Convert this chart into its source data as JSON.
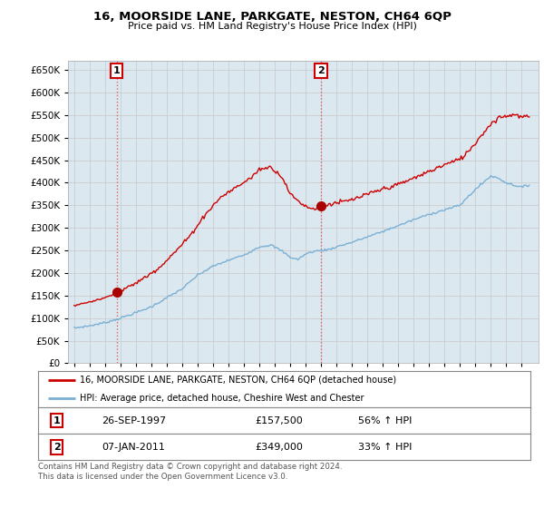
{
  "title": "16, MOORSIDE LANE, PARKGATE, NESTON, CH64 6QP",
  "subtitle": "Price paid vs. HM Land Registry's House Price Index (HPI)",
  "sale1_t": 1997.75,
  "sale1_price": 157500,
  "sale2_t": 2011.0,
  "sale2_price": 349000,
  "hpi_line_color": "#7ab0d4",
  "price_line_color": "#cc0000",
  "vline_color": "#e06060",
  "dot_color": "#aa0000",
  "grid_color": "#c8c8c8",
  "chart_bg_color": "#dce8f0",
  "background_color": "#ffffff",
  "legend_label1": "16, MOORSIDE LANE, PARKGATE, NESTON, CH64 6QP (detached house)",
  "legend_label2": "HPI: Average price, detached house, Cheshire West and Chester",
  "table_row1": [
    "1",
    "26-SEP-1997",
    "£157,500",
    "56% ↑ HPI"
  ],
  "table_row2": [
    "2",
    "07-JAN-2011",
    "£349,000",
    "33% ↑ HPI"
  ],
  "footnote": "Contains HM Land Registry data © Crown copyright and database right 2024.\nThis data is licensed under the Open Government Licence v3.0.",
  "ylim": [
    0,
    670000
  ],
  "yticks": [
    0,
    50000,
    100000,
    150000,
    200000,
    250000,
    300000,
    350000,
    400000,
    450000,
    500000,
    550000,
    600000,
    650000
  ],
  "hpi_anchors_t": [
    1995.0,
    1996.0,
    1997.0,
    1998.0,
    1999.0,
    2000.0,
    2001.0,
    2002.0,
    2003.0,
    2004.0,
    2005.0,
    2006.0,
    2007.0,
    2007.75,
    2008.5,
    2009.0,
    2009.5,
    2010.0,
    2010.5,
    2011.0,
    2011.5,
    2012.0,
    2013.0,
    2014.0,
    2015.0,
    2016.0,
    2017.0,
    2018.0,
    2019.0,
    2020.0,
    2020.5,
    2021.0,
    2021.5,
    2022.0,
    2022.5,
    2023.0,
    2023.5,
    2024.0,
    2024.5
  ],
  "hpi_anchors_v": [
    78000,
    83000,
    90000,
    100000,
    112000,
    125000,
    145000,
    165000,
    195000,
    215000,
    228000,
    240000,
    258000,
    262000,
    248000,
    235000,
    230000,
    242000,
    248000,
    250000,
    252000,
    258000,
    268000,
    280000,
    292000,
    305000,
    318000,
    330000,
    340000,
    350000,
    368000,
    385000,
    400000,
    415000,
    410000,
    400000,
    395000,
    390000,
    395000
  ],
  "price_anchors_before_t": [
    1995.0,
    1996.0,
    1997.0,
    1997.75
  ],
  "price_anchors_before_v": [
    128000,
    136000,
    145000,
    157500
  ],
  "price_anchors_between_t": [
    1997.75,
    1998.5,
    1999.5,
    2000.5,
    2001.5,
    2002.5,
    2003.5,
    2004.5,
    2005.5,
    2006.5,
    2007.0,
    2007.75,
    2008.5,
    2009.0,
    2009.5,
    2010.0,
    2010.5,
    2011.0
  ],
  "price_anchors_between_v": [
    157500,
    168000,
    188000,
    212000,
    245000,
    282000,
    330000,
    368000,
    390000,
    412000,
    430000,
    435000,
    412000,
    375000,
    360000,
    348000,
    342000,
    349000
  ],
  "price_anchors_after_t": [
    2011.0,
    2011.5,
    2012.0,
    2012.5,
    2013.0,
    2014.0,
    2015.0,
    2016.0,
    2017.0,
    2018.0,
    2019.0,
    2020.0,
    2020.5,
    2021.0,
    2021.5,
    2022.0,
    2022.5,
    2023.0,
    2023.5,
    2024.0,
    2024.5
  ],
  "price_anchors_after_v": [
    349000,
    352000,
    356000,
    358000,
    362000,
    374000,
    386000,
    396000,
    410000,
    425000,
    440000,
    452000,
    468000,
    488000,
    510000,
    530000,
    545000,
    548000,
    552000,
    545000,
    548000
  ]
}
